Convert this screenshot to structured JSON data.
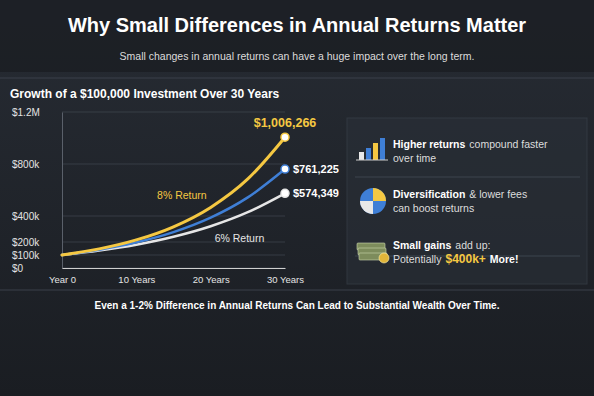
{
  "header": {
    "title": "Why Small Differences in Annual Returns Matter",
    "subtitle": "Small changes in annual returns can have a huge impact over the long term."
  },
  "chart_data": {
    "type": "line",
    "title": "Growth of a $100,000 Investment Over 30 Years",
    "x": [
      0,
      5,
      10,
      15,
      20,
      25,
      30
    ],
    "xlim": [
      0,
      30
    ],
    "xticks": [
      {
        "value": 0,
        "label": "Year 0"
      },
      {
        "value": 10,
        "label": "10 Years"
      },
      {
        "value": 20,
        "label": "20 Years"
      },
      {
        "value": 30,
        "label": "30 Years"
      }
    ],
    "ylim": [
      0,
      1200000
    ],
    "yticks": [
      {
        "value": 0,
        "label": "$0"
      },
      {
        "value": 200000,
        "label": "$200k"
      },
      {
        "value": 400000,
        "label": "$400k"
      },
      {
        "value": 800000,
        "label": "$800k"
      },
      {
        "value": 100000,
        "label": "$100k"
      },
      {
        "value": 1200000,
        "label": "$1.2M"
      }
    ],
    "grid": true,
    "data_labels": true,
    "series": [
      {
        "name": "8% Return",
        "color": "#f5c842",
        "values": [
          100000,
          147000,
          216000,
          317000,
          466000,
          685000,
          1006266
        ],
        "value_labels": [
          null,
          null,
          null,
          null,
          null,
          null,
          "$1,006,266"
        ]
      },
      {
        "color": "#3f7fd6",
        "values": [
          100000,
          140000,
          197000,
          276000,
          387000,
          543000,
          761225
        ],
        "value_labels": [
          null,
          null,
          null,
          null,
          null,
          null,
          "$761,225"
        ]
      },
      {
        "name": "6% Return",
        "color": "#e6e6e6",
        "values": [
          100000,
          134000,
          179000,
          240000,
          321000,
          429000,
          574349
        ],
        "value_labels": [
          null,
          null,
          null,
          null,
          null,
          null,
          "$574,349"
        ]
      }
    ]
  },
  "panel": [
    {
      "lead": "Higher returns",
      "text": [
        "compound faster",
        "over time"
      ]
    },
    {
      "lead": "Diversification",
      "text": [
        "& lower fees",
        "can boost returns"
      ]
    },
    {
      "lead": "Small gains",
      "text": [
        "add up:",
        "Potentially"
      ],
      "highlight": "$400k+",
      "tail": "More!"
    }
  ],
  "footer": "Even a 1-2% Difference in Annual Returns Can Lead to Substantial Wealth Over Time."
}
